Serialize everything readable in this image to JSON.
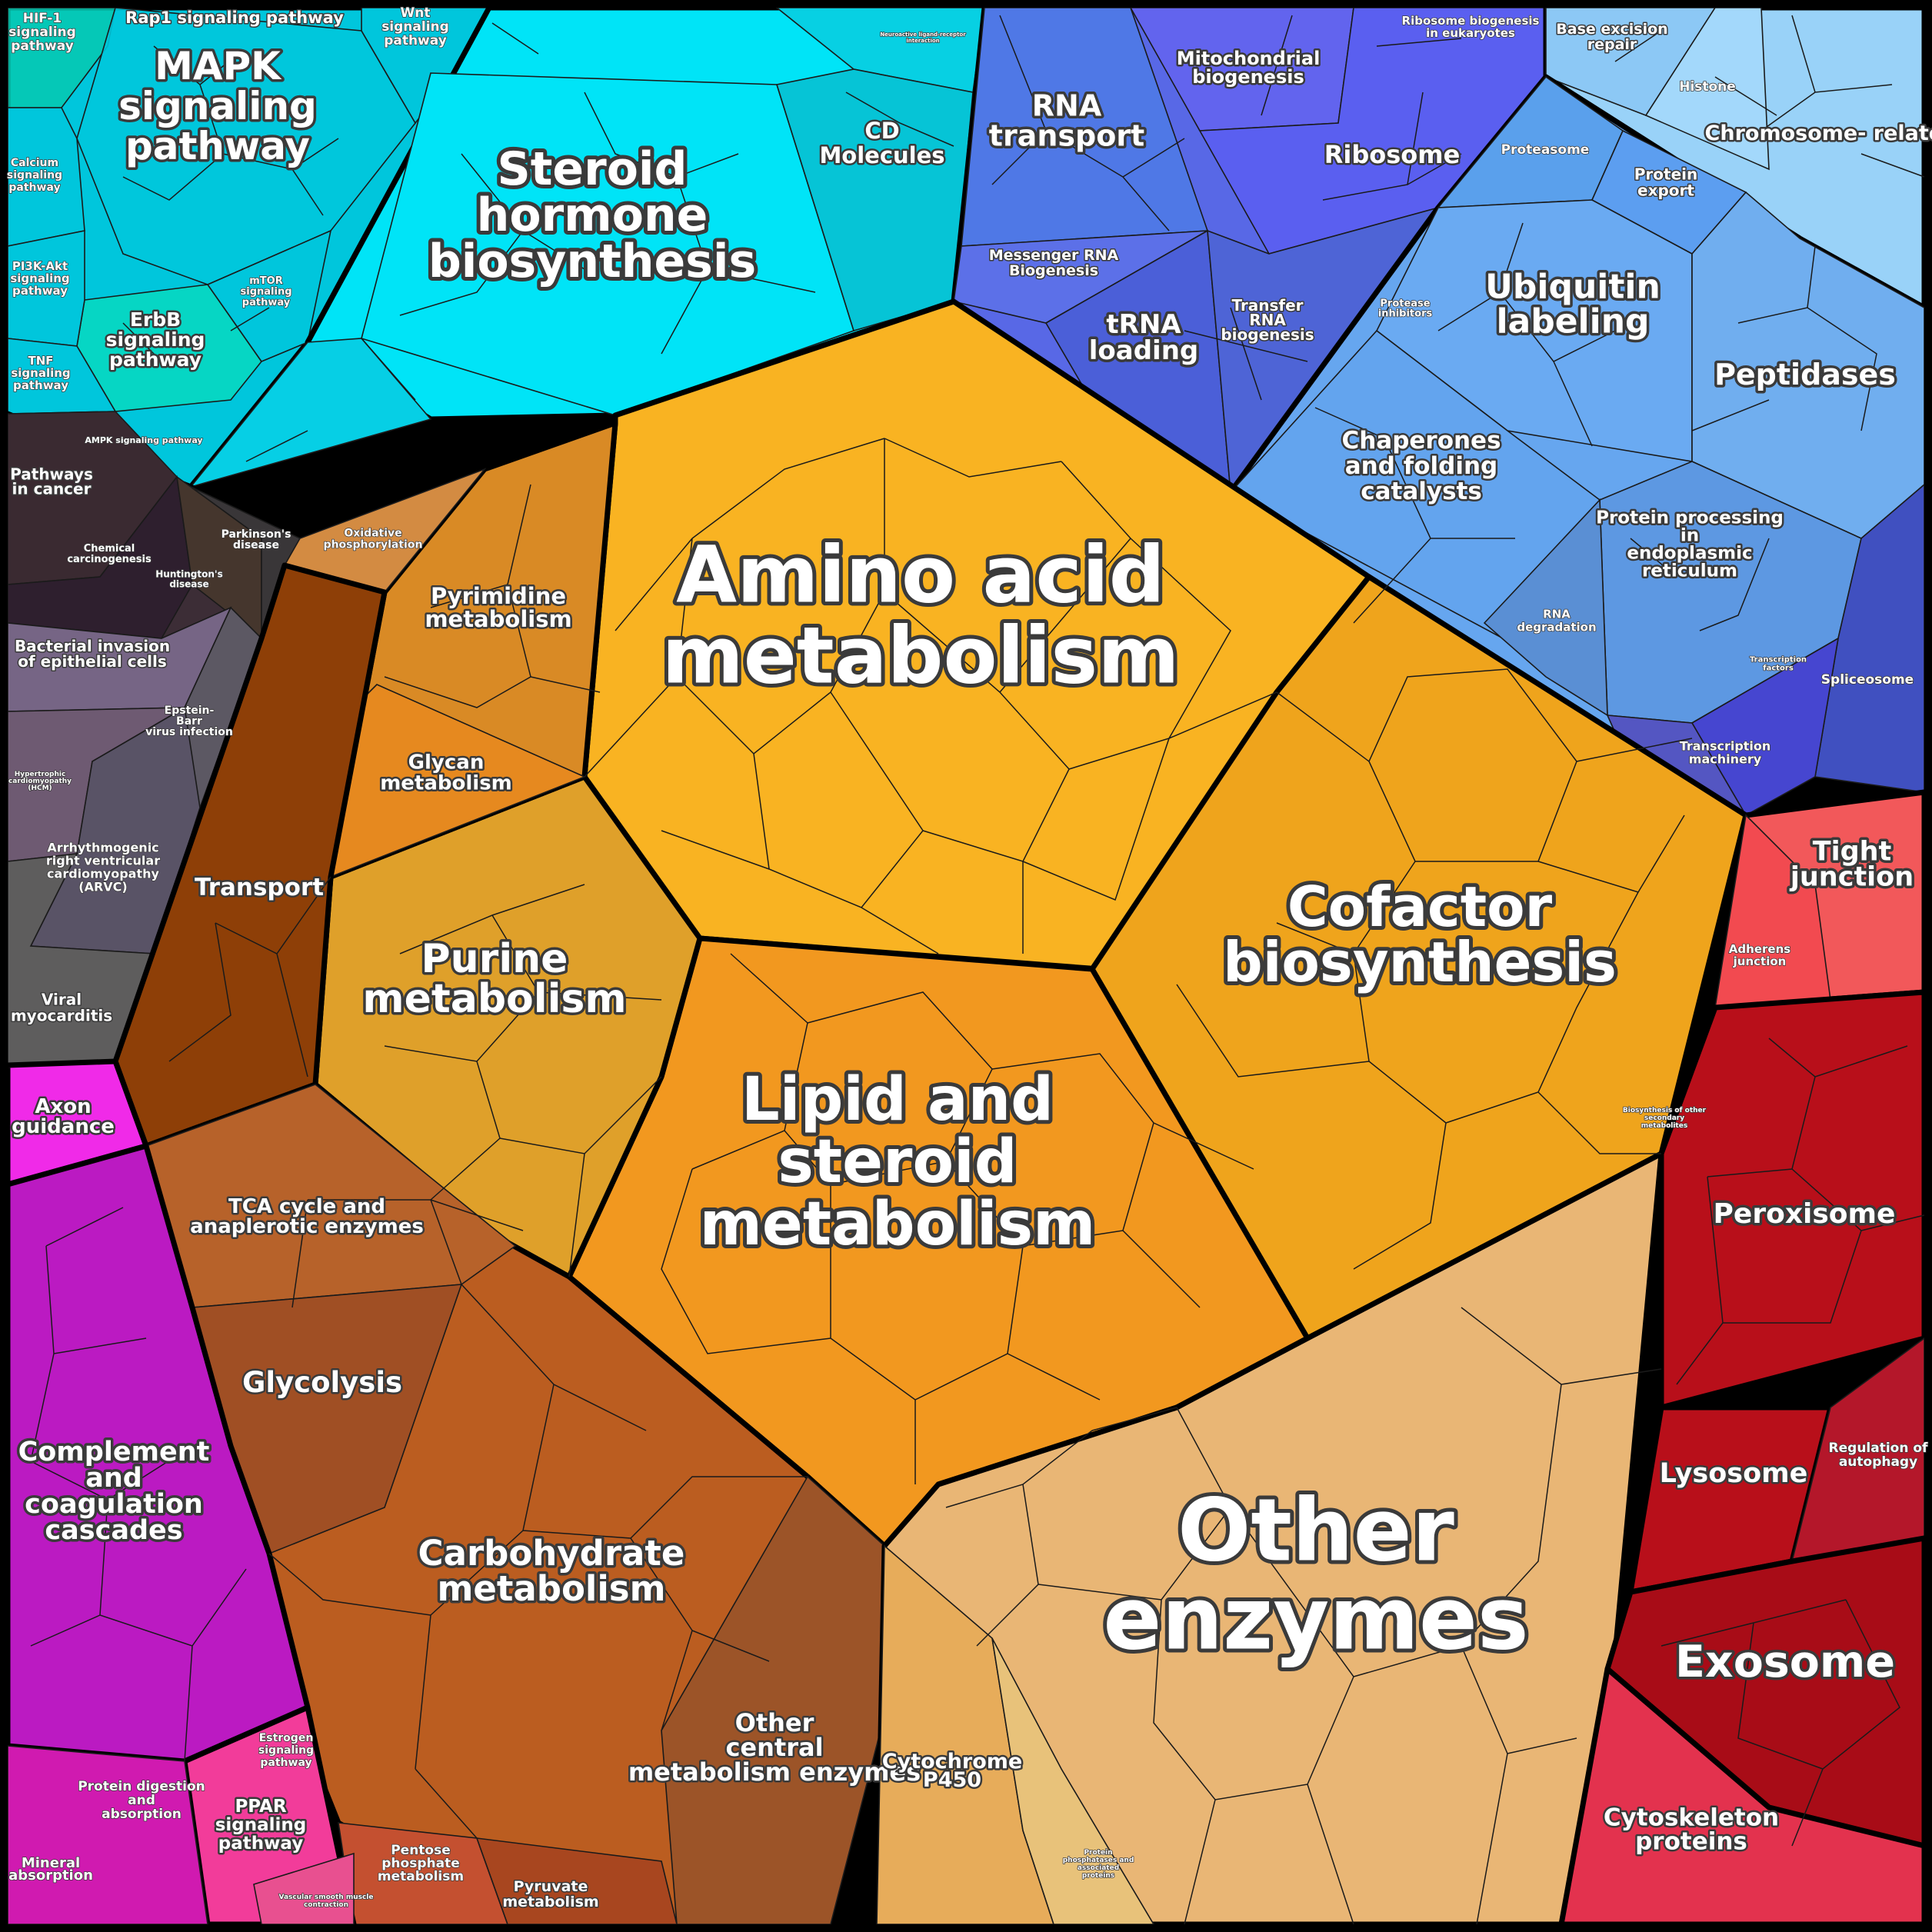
{
  "colors": {
    "signaling_cyan": "#00c6dc",
    "steroid_cyan": "#00e4f7",
    "disease_dark": "#3c2d36",
    "disease_grey": "#6a6070",
    "info_blue": "#5868e6",
    "protein_blue": "#66a6ef",
    "chromosome_blue": "#99d2f8",
    "spliceosome_indigo": "#4050c0",
    "amino_orange": "#f9b322",
    "lipid_orange": "#f2981f",
    "cofactor_orange": "#efa41c",
    "purine_gold": "#dfa02a",
    "pyrimidine_orange": "#d98a25",
    "transport_brown": "#8e3f07",
    "carbo_brown": "#bb5d20",
    "glycolysis_brown": "#a04f24",
    "other_central_brown": "#9c5428",
    "other_enzymes_tan": "#e9b675",
    "cytochrome_tan": "#e7ac5a",
    "tight_red": "#f2585a",
    "perox_red": "#b80f1a",
    "exosome_red": "#a80c17",
    "cytoskeleton_red": "#e3324e",
    "complement_magenta": "#bb1ac2",
    "axon_magenta": "#f02ae8",
    "ppar_pink": "#f23c9a",
    "viral_grey": "#5e5d5d"
  },
  "labels": {
    "hif1": "HIF-1 signaling pathway",
    "rap1": "Rap1 signaling pathway",
    "wnt": "Wnt signaling pathway",
    "mapk": "MAPK signaling pathway",
    "calcium": "Calcium signaling pathway",
    "pi3k": "PI3K-Akt signaling pathway",
    "tnf": "TNF signaling pathway",
    "erbb": "ErbB signaling pathway",
    "mtor": "mTOR signaling pathway",
    "ampk": "AMPK signaling pathway",
    "steroid": "Steroid hormone biosynthesis",
    "neuro": "Neuroactive ligand-receptor interaction",
    "cd": "CD Molecules",
    "rna_transport": "RNA transport",
    "mito": "Mitochondrial biogenesis",
    "ribo_bio": "Ribosome biogenesis in eukaryotes",
    "ribosome": "Ribosome",
    "mrna": "Messenger RNA Biogenesis",
    "trna_loading": "tRNA loading",
    "trna_bio": "Transfer RNA biogenesis",
    "base_excision": "Base excision repair",
    "histone": "Histone",
    "chromosome": "Chromosome-related",
    "proteasome": "Proteasome",
    "protein_export": "Protein export",
    "ubiquitin": "Ubiquitin labeling",
    "protease_inh": "Protease inhibitors",
    "peptidases": "Peptidases",
    "chaperones": "Chaperones and folding catalysts",
    "er": "Protein processing in endoplasmic reticulum",
    "rna_deg": "RNA degradation",
    "tf": "Transcription factors",
    "spliceosome": "Spliceosome",
    "tmach": "Transcription machinery",
    "cancer": "Pathways in cancer",
    "chemcarc": "Chemical carcinogenesis",
    "parkinson": "Parkinson's disease",
    "huntington": "Huntington's disease",
    "oxphos": "Oxidative phosphorylation",
    "bacterial": "Bacterial invasion of epithelial cells",
    "ebv": "Epstein-Barr virus infection",
    "hcm": "Hypertrophic cardiomyopathy (HCM)",
    "arvc": "Arrhythmogenic right ventricular cardiomyopathy (ARVC)",
    "viral": "Viral myocarditis",
    "pyrimidine": "Pyrimidine metabolism",
    "amino": "Amino acid metabolism",
    "glycan": "Glycan metabolism",
    "transport": "Transport",
    "purine": "Purine metabolism",
    "cofactor": "Cofactor biosynthesis",
    "lipid": "Lipid and steroid metabolism",
    "secondary": "Biosynthesis of other secondary metabolites",
    "tight": "Tight junction",
    "adherens": "Adherens junction",
    "axon": "Axon guidance",
    "tca": "TCA cycle and anaplerotic enzymes",
    "peroxisome": "Peroxisome",
    "glycolysis": "Glycolysis",
    "complement": "Complement and coagulation cascades",
    "lysosome": "Lysosome",
    "autophagy": "Regulation of autophagy",
    "other_enzymes": "Other enzymes",
    "carbohydrate": "Carbohydrate metabolism",
    "exosome": "Exosome",
    "other_central": "Other central metabolism enzymes",
    "cytochrome": "Cytochrome P450",
    "estrogen": "Estrogen signaling pathway",
    "protein_digestion": "Protein digestion and absorption",
    "ppar": "PPAR signaling pathway",
    "mineral": "Mineral absorption",
    "vascular": "Vascular smooth muscle contraction",
    "pentose": "Pentose phosphate metabolism",
    "pyruvate": "Pyruvate metabolism",
    "phosphatase": "Protein phosphatases and associated proteins",
    "cytoskeleton": "Cytoskeleton proteins"
  }
}
